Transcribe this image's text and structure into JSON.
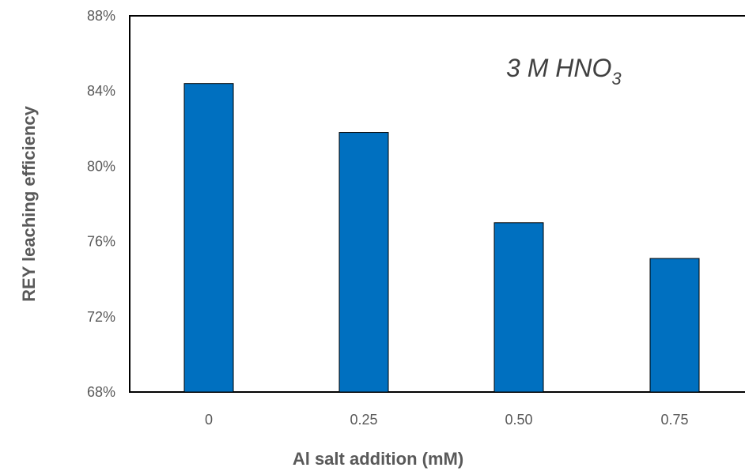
{
  "chart_data": {
    "type": "bar",
    "categories": [
      "0",
      "0.25",
      "0.50",
      "0.75"
    ],
    "values": [
      84.4,
      81.8,
      77.0,
      75.1
    ],
    "xlabel": "Al salt addition (mM)",
    "ylabel": "REY leaching efficiency",
    "ylim": [
      68,
      88
    ],
    "yticks": [
      68,
      72,
      76,
      80,
      84,
      88
    ],
    "ytick_labels": [
      "68%",
      "72%",
      "76%",
      "80%",
      "84%",
      "88%"
    ],
    "annotation": {
      "main": "3 M HNO",
      "subscript": "3"
    },
    "bar_color": "#0070C0",
    "grid": false,
    "legend": "none"
  }
}
